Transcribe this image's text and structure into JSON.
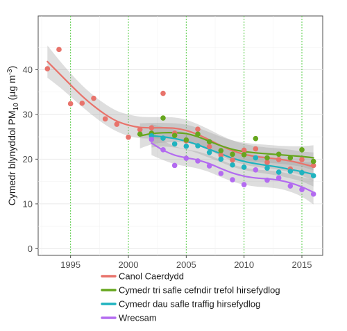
{
  "chart_data": {
    "type": "scatter",
    "ylabel_main": "Cymedr blynyddol PM",
    "ylabel_sub": "10",
    "ylabel_unit_open": " (µg m",
    "ylabel_sup": "-3",
    "ylabel_unit_close": ")",
    "xlim": [
      1992.2,
      2016.8
    ],
    "ylim": [
      -1.5,
      52
    ],
    "x_ticks": [
      1995,
      2000,
      2005,
      2010,
      2015
    ],
    "y_ticks": [
      0,
      10,
      20,
      30,
      40
    ],
    "x_tick_labels": [
      "1995",
      "2000",
      "2005",
      "2010",
      "2015"
    ],
    "y_tick_labels": [
      "0",
      "10",
      "20",
      "30",
      "40"
    ],
    "vertical_reference_lines": [
      1995,
      2000,
      2005,
      2010,
      2015
    ],
    "grid": true,
    "legend_position": "bottom",
    "series": [
      {
        "name": "Canol Caerdydd",
        "color": "#e8736b",
        "points": [
          [
            1993,
            40.2
          ],
          [
            1994,
            44.5
          ],
          [
            1995,
            32.4
          ],
          [
            1996,
            32.5
          ],
          [
            1997,
            33.6
          ],
          [
            1998,
            29.0
          ],
          [
            1999,
            27.8
          ],
          [
            2000,
            24.9
          ],
          [
            2001,
            26.6
          ],
          [
            2002,
            27.0
          ],
          [
            2003,
            34.7
          ],
          [
            2004,
            25.8
          ],
          [
            2005,
            24.1
          ],
          [
            2006,
            26.7
          ],
          [
            2007,
            22.8
          ],
          [
            2008,
            20.9
          ],
          [
            2009,
            19.8
          ],
          [
            2010,
            22.0
          ],
          [
            2011,
            22.3
          ],
          [
            2012,
            19.3
          ],
          [
            2013,
            19.9
          ],
          [
            2014,
            17.8
          ],
          [
            2015,
            19.9
          ],
          [
            2016,
            18.6
          ]
        ],
        "trend": [
          [
            1993,
            41.8
          ],
          [
            1994,
            39.2
          ],
          [
            1995,
            36.6
          ],
          [
            1996,
            34.1
          ],
          [
            1997,
            31.9
          ],
          [
            1998,
            30.0
          ],
          [
            1999,
            28.5
          ],
          [
            2000,
            27.6
          ],
          [
            2001,
            27.1
          ],
          [
            2002,
            27.0
          ],
          [
            2003,
            27.0
          ],
          [
            2004,
            26.9
          ],
          [
            2005,
            26.4
          ],
          [
            2006,
            25.5
          ],
          [
            2007,
            24.3
          ],
          [
            2008,
            23.0
          ],
          [
            2009,
            21.9
          ],
          [
            2010,
            21.1
          ],
          [
            2011,
            20.6
          ],
          [
            2012,
            20.3
          ],
          [
            2013,
            20.0
          ],
          [
            2014,
            19.6
          ],
          [
            2015,
            19.0
          ],
          [
            2016,
            18.3
          ]
        ],
        "band": [
          [
            1993,
            3.6
          ],
          [
            1994,
            3.0
          ],
          [
            1995,
            2.6
          ],
          [
            1996,
            2.4
          ],
          [
            1997,
            2.3
          ],
          [
            1998,
            2.3
          ],
          [
            1999,
            2.3
          ],
          [
            2000,
            2.4
          ],
          [
            2001,
            2.4
          ],
          [
            2002,
            2.4
          ],
          [
            2003,
            2.4
          ],
          [
            2004,
            2.4
          ],
          [
            2005,
            2.4
          ],
          [
            2006,
            2.3
          ],
          [
            2007,
            2.3
          ],
          [
            2008,
            2.3
          ],
          [
            2009,
            2.3
          ],
          [
            2010,
            2.3
          ],
          [
            2011,
            2.3
          ],
          [
            2012,
            2.3
          ],
          [
            2013,
            2.4
          ],
          [
            2014,
            2.5
          ],
          [
            2015,
            2.7
          ],
          [
            2016,
            3.2
          ]
        ]
      },
      {
        "name": "Cymedr tri safle cefndir trefol hirsefydlog",
        "color": "#66a61e",
        "points": [
          [
            2001,
            25.6
          ],
          [
            2002,
            25.8
          ],
          [
            2003,
            29.2
          ],
          [
            2004,
            25.3
          ],
          [
            2005,
            24.3
          ],
          [
            2006,
            25.6
          ],
          [
            2007,
            23.9
          ],
          [
            2008,
            21.9
          ],
          [
            2009,
            21.1
          ],
          [
            2010,
            21.0
          ],
          [
            2011,
            24.6
          ],
          [
            2012,
            20.3
          ],
          [
            2013,
            21.1
          ],
          [
            2014,
            20.3
          ],
          [
            2015,
            22.1
          ],
          [
            2016,
            19.5
          ]
        ],
        "trend": [
          [
            2001,
            25.2
          ],
          [
            2002,
            25.7
          ],
          [
            2003,
            25.9
          ],
          [
            2004,
            25.9
          ],
          [
            2005,
            25.7
          ],
          [
            2006,
            25.0
          ],
          [
            2007,
            24.0
          ],
          [
            2008,
            23.0
          ],
          [
            2009,
            22.2
          ],
          [
            2010,
            21.7
          ],
          [
            2011,
            21.4
          ],
          [
            2012,
            21.2
          ],
          [
            2013,
            21.0
          ],
          [
            2014,
            20.8
          ],
          [
            2015,
            20.6
          ],
          [
            2016,
            20.3
          ]
        ],
        "band": [
          [
            2001,
            2.8
          ],
          [
            2002,
            2.4
          ],
          [
            2003,
            2.2
          ],
          [
            2004,
            2.1
          ],
          [
            2005,
            2.0
          ],
          [
            2006,
            2.0
          ],
          [
            2007,
            2.0
          ],
          [
            2008,
            2.0
          ],
          [
            2009,
            2.0
          ],
          [
            2010,
            2.0
          ],
          [
            2011,
            2.0
          ],
          [
            2012,
            2.0
          ],
          [
            2013,
            2.0
          ],
          [
            2014,
            2.1
          ],
          [
            2015,
            2.3
          ],
          [
            2016,
            2.8
          ]
        ]
      },
      {
        "name": "Cymedr dau safle traffig hirsefydlog",
        "color": "#1fb3bf",
        "points": [
          [
            2002,
            25.2
          ],
          [
            2003,
            24.7
          ],
          [
            2004,
            23.4
          ],
          [
            2005,
            22.9
          ],
          [
            2006,
            23.0
          ],
          [
            2007,
            21.5
          ],
          [
            2008,
            20.0
          ],
          [
            2009,
            18.7
          ],
          [
            2010,
            18.2
          ],
          [
            2011,
            20.3
          ],
          [
            2012,
            18.0
          ],
          [
            2013,
            17.1
          ],
          [
            2014,
            17.3
          ],
          [
            2015,
            17.0
          ],
          [
            2016,
            16.3
          ]
        ],
        "trend": [
          [
            2002,
            25.2
          ],
          [
            2003,
            25.0
          ],
          [
            2004,
            24.6
          ],
          [
            2005,
            24.0
          ],
          [
            2006,
            23.2
          ],
          [
            2007,
            22.2
          ],
          [
            2008,
            21.2
          ],
          [
            2009,
            20.2
          ],
          [
            2010,
            19.5
          ],
          [
            2011,
            19.0
          ],
          [
            2012,
            18.6
          ],
          [
            2013,
            18.2
          ],
          [
            2014,
            17.7
          ],
          [
            2015,
            17.2
          ],
          [
            2016,
            16.6
          ]
        ],
        "band": [
          [
            2002,
            2.6
          ],
          [
            2003,
            2.2
          ],
          [
            2004,
            2.0
          ],
          [
            2005,
            1.9
          ],
          [
            2006,
            1.9
          ],
          [
            2007,
            1.9
          ],
          [
            2008,
            1.9
          ],
          [
            2009,
            1.9
          ],
          [
            2010,
            1.9
          ],
          [
            2011,
            1.9
          ],
          [
            2012,
            1.9
          ],
          [
            2013,
            1.9
          ],
          [
            2014,
            2.0
          ],
          [
            2015,
            2.2
          ],
          [
            2016,
            2.7
          ]
        ]
      },
      {
        "name": "Wrecsam",
        "color": "#b36bf0",
        "points": [
          [
            2002,
            24.4
          ],
          [
            2003,
            22.1
          ],
          [
            2004,
            18.6
          ],
          [
            2005,
            20.2
          ],
          [
            2006,
            19.6
          ],
          [
            2007,
            18.5
          ],
          [
            2008,
            16.8
          ],
          [
            2009,
            15.4
          ],
          [
            2010,
            14.3
          ],
          [
            2011,
            17.6
          ],
          [
            2012,
            15.3
          ],
          [
            2013,
            15.8
          ],
          [
            2014,
            14.0
          ],
          [
            2015,
            13.2
          ],
          [
            2016,
            12.2
          ]
        ],
        "trend": [
          [
            2002,
            23.6
          ],
          [
            2003,
            22.0
          ],
          [
            2004,
            20.9
          ],
          [
            2005,
            20.3
          ],
          [
            2006,
            19.8
          ],
          [
            2007,
            19.0
          ],
          [
            2008,
            17.9
          ],
          [
            2009,
            16.9
          ],
          [
            2010,
            16.2
          ],
          [
            2011,
            15.8
          ],
          [
            2012,
            15.6
          ],
          [
            2013,
            15.3
          ],
          [
            2014,
            14.7
          ],
          [
            2015,
            13.8
          ],
          [
            2016,
            12.6
          ]
        ],
        "band": [
          [
            2002,
            2.7
          ],
          [
            2003,
            2.2
          ],
          [
            2004,
            2.0
          ],
          [
            2005,
            1.9
          ],
          [
            2006,
            1.9
          ],
          [
            2007,
            1.9
          ],
          [
            2008,
            1.9
          ],
          [
            2009,
            1.9
          ],
          [
            2010,
            1.9
          ],
          [
            2011,
            1.9
          ],
          [
            2012,
            1.9
          ],
          [
            2013,
            1.9
          ],
          [
            2014,
            2.0
          ],
          [
            2015,
            2.2
          ],
          [
            2016,
            2.7
          ]
        ]
      }
    ]
  }
}
